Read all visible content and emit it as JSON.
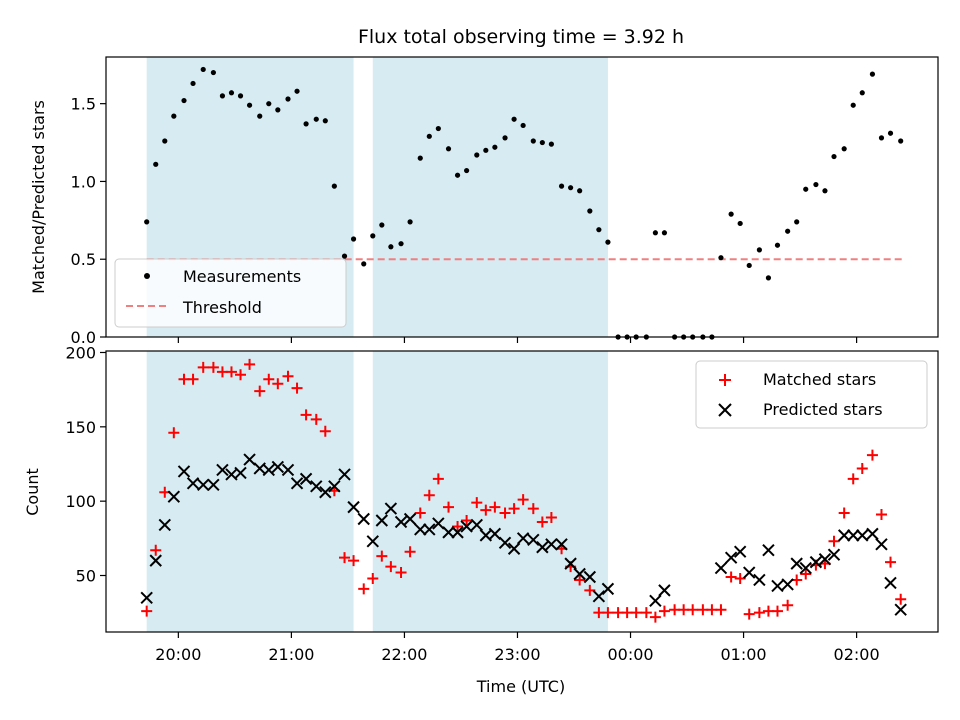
{
  "chart_data": {
    "title": "Flux total observing time = 3.92 h",
    "xlabel": "Time (UTC)",
    "x_unit": "hours UTC (values past 24 are after midnight)",
    "x_ticks": [
      {
        "value": 20,
        "label": "20:00"
      },
      {
        "value": 21,
        "label": "21:00"
      },
      {
        "value": 22,
        "label": "22:00"
      },
      {
        "value": 23,
        "label": "23:00"
      },
      {
        "value": 24,
        "label": "00:00"
      },
      {
        "value": 25,
        "label": "01:00"
      },
      {
        "value": 26,
        "label": "02:00"
      }
    ],
    "xlim": [
      19.36,
      26.72
    ],
    "shaded_intervals": [
      [
        19.72,
        21.55
      ],
      [
        21.72,
        23.8
      ]
    ],
    "shade_color": "#add8e6",
    "top": {
      "type": "scatter",
      "ylabel": "Matched/Predicted stars",
      "ylim": [
        0,
        1.8
      ],
      "y_ticks": [
        0.0,
        0.5,
        1.0,
        1.5
      ],
      "y_tick_labels": [
        "0.0",
        "0.5",
        "1.0",
        "1.5"
      ],
      "legend": {
        "position": "lower-left",
        "entries": [
          "Measurements",
          "Threshold"
        ]
      },
      "threshold": {
        "name": "Threshold",
        "value": 0.5,
        "x_range": [
          19.72,
          26.4
        ],
        "color": "#f08080"
      },
      "series": [
        {
          "name": "Measurements",
          "color": "#000000",
          "points": [
            [
              19.72,
              0.74
            ],
            [
              19.8,
              1.11
            ],
            [
              19.88,
              1.26
            ],
            [
              19.96,
              1.42
            ],
            [
              20.05,
              1.52
            ],
            [
              20.13,
              1.63
            ],
            [
              20.22,
              1.72
            ],
            [
              20.31,
              1.7
            ],
            [
              20.39,
              1.55
            ],
            [
              20.47,
              1.57
            ],
            [
              20.55,
              1.55
            ],
            [
              20.63,
              1.49
            ],
            [
              20.72,
              1.42
            ],
            [
              20.8,
              1.5
            ],
            [
              20.88,
              1.46
            ],
            [
              20.97,
              1.53
            ],
            [
              21.05,
              1.58
            ],
            [
              21.13,
              1.37
            ],
            [
              21.22,
              1.4
            ],
            [
              21.3,
              1.39
            ],
            [
              21.38,
              0.97
            ],
            [
              21.47,
              0.52
            ],
            [
              21.55,
              0.63
            ],
            [
              21.64,
              0.47
            ],
            [
              21.72,
              0.65
            ],
            [
              21.8,
              0.72
            ],
            [
              21.88,
              0.58
            ],
            [
              21.97,
              0.6
            ],
            [
              22.05,
              0.74
            ],
            [
              22.14,
              1.15
            ],
            [
              22.22,
              1.29
            ],
            [
              22.3,
              1.34
            ],
            [
              22.39,
              1.21
            ],
            [
              22.47,
              1.04
            ],
            [
              22.55,
              1.07
            ],
            [
              22.64,
              1.17
            ],
            [
              22.72,
              1.2
            ],
            [
              22.8,
              1.22
            ],
            [
              22.89,
              1.28
            ],
            [
              22.97,
              1.4
            ],
            [
              23.05,
              1.36
            ],
            [
              23.14,
              1.26
            ],
            [
              23.22,
              1.25
            ],
            [
              23.3,
              1.24
            ],
            [
              23.39,
              0.97
            ],
            [
              23.47,
              0.96
            ],
            [
              23.55,
              0.94
            ],
            [
              23.64,
              0.81
            ],
            [
              23.72,
              0.69
            ],
            [
              23.8,
              0.61
            ],
            [
              23.89,
              0.0
            ],
            [
              23.97,
              0.0
            ],
            [
              24.05,
              0.0
            ],
            [
              24.14,
              0.0
            ],
            [
              24.22,
              0.67
            ],
            [
              24.3,
              0.67
            ],
            [
              24.39,
              0.0
            ],
            [
              24.47,
              0.0
            ],
            [
              24.55,
              0.0
            ],
            [
              24.64,
              0.0
            ],
            [
              24.72,
              0.0
            ],
            [
              24.8,
              0.51
            ],
            [
              24.89,
              0.79
            ],
            [
              24.97,
              0.73
            ],
            [
              25.05,
              0.46
            ],
            [
              25.14,
              0.56
            ],
            [
              25.22,
              0.38
            ],
            [
              25.3,
              0.59
            ],
            [
              25.39,
              0.68
            ],
            [
              25.47,
              0.74
            ],
            [
              25.55,
              0.95
            ],
            [
              25.64,
              0.98
            ],
            [
              25.72,
              0.94
            ],
            [
              25.8,
              1.16
            ],
            [
              25.89,
              1.21
            ],
            [
              25.97,
              1.49
            ],
            [
              26.05,
              1.57
            ],
            [
              26.14,
              1.69
            ],
            [
              26.22,
              1.28
            ],
            [
              26.3,
              1.31
            ],
            [
              26.39,
              1.26
            ]
          ]
        }
      ]
    },
    "bottom": {
      "type": "scatter",
      "ylabel": "Count",
      "ylim": [
        12,
        201
      ],
      "y_ticks": [
        50,
        100,
        150,
        200
      ],
      "y_tick_labels": [
        "50",
        "100",
        "150",
        "200"
      ],
      "legend": {
        "position": "top-right",
        "entries": [
          "Matched stars",
          "Predicted stars"
        ]
      },
      "series": [
        {
          "name": "Matched stars",
          "marker": "plus",
          "color": "#ff0000",
          "points": [
            [
              19.72,
              26
            ],
            [
              19.8,
              67
            ],
            [
              19.88,
              106
            ],
            [
              19.96,
              146
            ],
            [
              20.05,
              182
            ],
            [
              20.13,
              182
            ],
            [
              20.22,
              190
            ],
            [
              20.31,
              190
            ],
            [
              20.39,
              187
            ],
            [
              20.47,
              187
            ],
            [
              20.55,
              185
            ],
            [
              20.63,
              192
            ],
            [
              20.72,
              174
            ],
            [
              20.8,
              182
            ],
            [
              20.88,
              179
            ],
            [
              20.97,
              184
            ],
            [
              21.05,
              176
            ],
            [
              21.13,
              158
            ],
            [
              21.22,
              155
            ],
            [
              21.3,
              147
            ],
            [
              21.38,
              107
            ],
            [
              21.47,
              62
            ],
            [
              21.55,
              60
            ],
            [
              21.64,
              41
            ],
            [
              21.72,
              48
            ],
            [
              21.8,
              63
            ],
            [
              21.88,
              56
            ],
            [
              21.97,
              52
            ],
            [
              22.05,
              66
            ],
            [
              22.14,
              92
            ],
            [
              22.22,
              104
            ],
            [
              22.3,
              115
            ],
            [
              22.39,
              96
            ],
            [
              22.47,
              83
            ],
            [
              22.55,
              87
            ],
            [
              22.64,
              99
            ],
            [
              22.72,
              94
            ],
            [
              22.8,
              96
            ],
            [
              22.89,
              92
            ],
            [
              22.97,
              95
            ],
            [
              23.05,
              101
            ],
            [
              23.14,
              95
            ],
            [
              23.22,
              86
            ],
            [
              23.3,
              89
            ],
            [
              23.39,
              68
            ],
            [
              23.47,
              56
            ],
            [
              23.55,
              47
            ],
            [
              23.64,
              40
            ],
            [
              23.72,
              25
            ],
            [
              23.8,
              25
            ],
            [
              23.89,
              25
            ],
            [
              23.97,
              25
            ],
            [
              24.05,
              25
            ],
            [
              24.14,
              25
            ],
            [
              24.22,
              22
            ],
            [
              24.3,
              26
            ],
            [
              24.39,
              27
            ],
            [
              24.47,
              27
            ],
            [
              24.55,
              27
            ],
            [
              24.64,
              27
            ],
            [
              24.72,
              27
            ],
            [
              24.8,
              27
            ],
            [
              24.89,
              49
            ],
            [
              24.97,
              48
            ],
            [
              25.05,
              24
            ],
            [
              25.14,
              25
            ],
            [
              25.22,
              26
            ],
            [
              25.3,
              26
            ],
            [
              25.39,
              30
            ],
            [
              25.47,
              47
            ],
            [
              25.55,
              51
            ],
            [
              25.64,
              57
            ],
            [
              25.72,
              58
            ],
            [
              25.8,
              73
            ],
            [
              25.89,
              92
            ],
            [
              25.97,
              115
            ],
            [
              26.05,
              122
            ],
            [
              26.14,
              131
            ],
            [
              26.22,
              91
            ],
            [
              26.3,
              59
            ],
            [
              26.39,
              34
            ]
          ]
        },
        {
          "name": "Predicted stars",
          "marker": "cross",
          "color": "#000000",
          "points": [
            [
              19.72,
              35
            ],
            [
              19.8,
              60
            ],
            [
              19.88,
              84
            ],
            [
              19.96,
              103
            ],
            [
              20.05,
              120
            ],
            [
              20.13,
              112
            ],
            [
              20.22,
              111
            ],
            [
              20.31,
              111
            ],
            [
              20.39,
              121
            ],
            [
              20.47,
              118
            ],
            [
              20.55,
              119
            ],
            [
              20.63,
              128
            ],
            [
              20.72,
              122
            ],
            [
              20.8,
              121
            ],
            [
              20.88,
              123
            ],
            [
              20.97,
              121
            ],
            [
              21.05,
              112
            ],
            [
              21.13,
              115
            ],
            [
              21.22,
              110
            ],
            [
              21.3,
              106
            ],
            [
              21.38,
              110
            ],
            [
              21.47,
              118
            ],
            [
              21.55,
              96
            ],
            [
              21.64,
              88
            ],
            [
              21.72,
              73
            ],
            [
              21.8,
              87
            ],
            [
              21.88,
              95
            ],
            [
              21.97,
              86
            ],
            [
              22.05,
              88
            ],
            [
              22.14,
              81
            ],
            [
              22.22,
              81
            ],
            [
              22.3,
              85
            ],
            [
              22.39,
              79
            ],
            [
              22.47,
              79
            ],
            [
              22.55,
              83
            ],
            [
              22.64,
              84
            ],
            [
              22.72,
              77
            ],
            [
              22.8,
              78
            ],
            [
              22.89,
              72
            ],
            [
              22.97,
              68
            ],
            [
              23.05,
              75
            ],
            [
              23.14,
              74
            ],
            [
              23.22,
              69
            ],
            [
              23.3,
              71
            ],
            [
              23.39,
              71
            ],
            [
              23.47,
              58
            ],
            [
              23.55,
              51
            ],
            [
              23.64,
              49
            ],
            [
              23.72,
              36
            ],
            [
              23.8,
              41
            ],
            [
              24.22,
              33
            ],
            [
              24.3,
              40
            ],
            [
              24.8,
              55
            ],
            [
              24.89,
              62
            ],
            [
              24.97,
              66
            ],
            [
              25.05,
              52
            ],
            [
              25.14,
              47
            ],
            [
              25.22,
              67
            ],
            [
              25.3,
              43
            ],
            [
              25.39,
              44
            ],
            [
              25.47,
              58
            ],
            [
              25.55,
              55
            ],
            [
              25.64,
              59
            ],
            [
              25.72,
              61
            ],
            [
              25.8,
              64
            ],
            [
              25.89,
              77
            ],
            [
              25.97,
              77
            ],
            [
              26.05,
              77
            ],
            [
              26.14,
              78
            ],
            [
              26.22,
              71
            ],
            [
              26.3,
              45
            ],
            [
              26.39,
              27
            ]
          ]
        }
      ]
    }
  }
}
